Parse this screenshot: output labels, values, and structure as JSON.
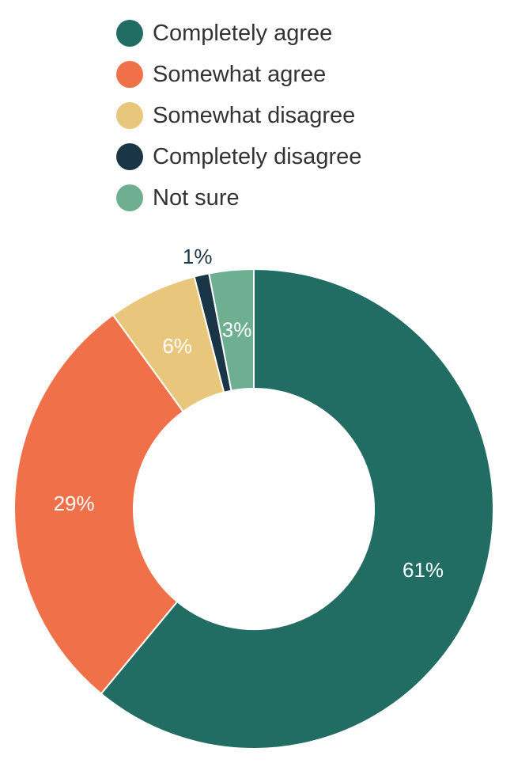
{
  "chart_data": {
    "type": "pie",
    "subtype": "donut",
    "legend_position": "top",
    "categories": [
      "Completely agree",
      "Somewhat agree",
      "Somewhat disagree",
      "Completely disagree",
      "Not sure"
    ],
    "values": [
      61,
      29,
      6,
      1,
      3
    ],
    "labels": [
      "61%",
      "29%",
      "6%",
      "1%",
      "3%"
    ],
    "colors": [
      "#226d63",
      "#ef7049",
      "#e8c77d",
      "#1a3646",
      "#6daf90"
    ],
    "label_colors": [
      "#ffffff",
      "#ffffff",
      "#ffffff",
      "#1a3646",
      "#ffffff"
    ]
  }
}
